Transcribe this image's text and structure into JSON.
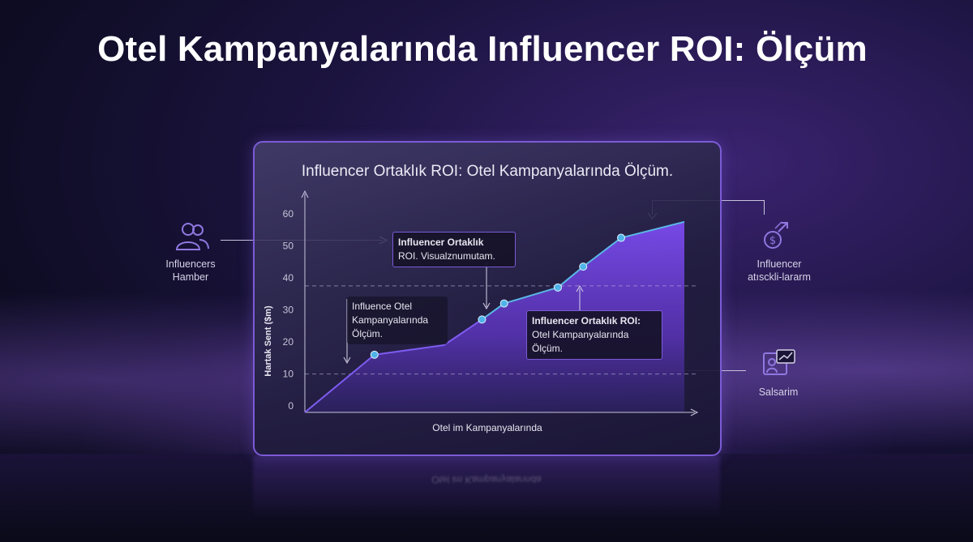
{
  "page": {
    "title": "Otel Kampanyalarında Influencer ROI: Ölçüm",
    "reflection": "Otel im Kampanyalarında"
  },
  "chart_data": {
    "type": "area",
    "title": "Influencer Ortaklık ROI: Otel Kampanyalarında Ölçüm.",
    "xlabel": "Otel im Kampanyalarında",
    "ylabel": "Hartak Sent ($m)",
    "ylim": [
      -2,
      62
    ],
    "yticks": [
      0,
      10,
      20,
      30,
      40,
      50,
      60
    ],
    "xlim": [
      0,
      12
    ],
    "grid": false,
    "reference_lines": [
      37.5,
      10
    ],
    "series": [
      {
        "color": "#7b4bef",
        "points": [
          {
            "x": 0,
            "y": -2
          },
          {
            "x": 2.2,
            "y": 16
          },
          {
            "x": 4.4,
            "y": 19
          },
          {
            "x": 5.6,
            "y": 27
          },
          {
            "x": 6.3,
            "y": 32
          },
          {
            "x": 8.0,
            "y": 37
          },
          {
            "x": 8.8,
            "y": 43.5
          },
          {
            "x": 10.0,
            "y": 52.5
          },
          {
            "x": 12.0,
            "y": 57.5
          }
        ],
        "markers": [
          1,
          3,
          4,
          5,
          6,
          7
        ]
      }
    ]
  },
  "callouts": {
    "top": {
      "title": "Influencer Ortaklık",
      "body": "ROI. Visualznumutam."
    },
    "left": {
      "body": "Influence Otel Kampanyalarında Ölçüm."
    },
    "right": {
      "title": "Influencer Ortaklık ROI:",
      "body": "Otel Kampanyalarında Ölçüm."
    }
  },
  "side": {
    "left_label": "Influencers Hamber",
    "right_top_label": "Influencer atısckli-lararm",
    "right_bottom_label": "Salsarim"
  },
  "icons": {
    "left": "users-icon",
    "right_top": "dollar-growth-icon",
    "right_bottom": "presentation-chart-icon"
  },
  "colors": {
    "accent": "#7b5bd6",
    "area_top": "#7b4bef",
    "marker": "#4fb3e8",
    "line": "#5ab8e6"
  }
}
